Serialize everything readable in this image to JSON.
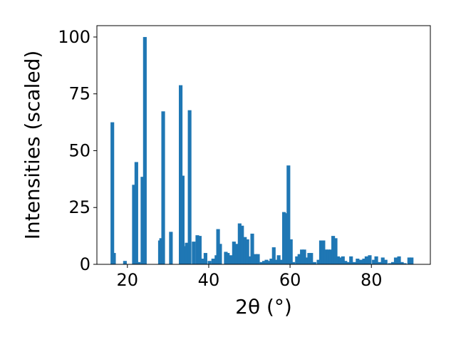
{
  "chart_data": {
    "type": "bar",
    "xlabel": "2θ (°)",
    "ylabel": "Intensities (scaled)",
    "xlim": [
      12.5,
      94.5
    ],
    "ylim": [
      0,
      105
    ],
    "bar_width": 0.9,
    "color": "#1f77b4",
    "grid": false,
    "legend": "none",
    "x_ticks": [
      20,
      40,
      60,
      80
    ],
    "x_tick_labels": [
      "20",
      "40",
      "60",
      "80"
    ],
    "y_ticks": [
      0,
      25,
      50,
      75,
      100
    ],
    "y_tick_labels": [
      "0",
      "25",
      "50",
      "75",
      "100"
    ],
    "points": [
      {
        "x": 16.3,
        "y": 62.5
      },
      {
        "x": 16.7,
        "y": 5.0
      },
      {
        "x": 19.4,
        "y": 1.5
      },
      {
        "x": 21.6,
        "y": 35.0
      },
      {
        "x": 22.2,
        "y": 45.0
      },
      {
        "x": 22.8,
        "y": 1.0
      },
      {
        "x": 23.7,
        "y": 38.5
      },
      {
        "x": 24.3,
        "y": 100.0
      },
      {
        "x": 28.0,
        "y": 10.5
      },
      {
        "x": 28.3,
        "y": 11.5
      },
      {
        "x": 28.8,
        "y": 67.3
      },
      {
        "x": 30.7,
        "y": 14.3
      },
      {
        "x": 33.1,
        "y": 78.8
      },
      {
        "x": 33.6,
        "y": 39.0
      },
      {
        "x": 34.1,
        "y": 8.0
      },
      {
        "x": 34.6,
        "y": 9.5
      },
      {
        "x": 35.3,
        "y": 67.8
      },
      {
        "x": 36.3,
        "y": 10.0
      },
      {
        "x": 37.2,
        "y": 12.8
      },
      {
        "x": 37.8,
        "y": 12.5
      },
      {
        "x": 38.4,
        "y": 2.5
      },
      {
        "x": 39.2,
        "y": 5.0
      },
      {
        "x": 40.2,
        "y": 1.5
      },
      {
        "x": 41.1,
        "y": 2.5
      },
      {
        "x": 41.9,
        "y": 4.0
      },
      {
        "x": 42.3,
        "y": 15.5
      },
      {
        "x": 42.8,
        "y": 9.0
      },
      {
        "x": 44.2,
        "y": 5.5
      },
      {
        "x": 44.7,
        "y": 5.0
      },
      {
        "x": 45.5,
        "y": 4.0
      },
      {
        "x": 46.2,
        "y": 10.0
      },
      {
        "x": 46.8,
        "y": 9.0
      },
      {
        "x": 47.6,
        "y": 18.0
      },
      {
        "x": 48.2,
        "y": 17.0
      },
      {
        "x": 48.9,
        "y": 12.0
      },
      {
        "x": 49.5,
        "y": 11.0
      },
      {
        "x": 50.2,
        "y": 3.5
      },
      {
        "x": 50.7,
        "y": 13.5
      },
      {
        "x": 51.5,
        "y": 4.5
      },
      {
        "x": 52.1,
        "y": 4.5
      },
      {
        "x": 53.0,
        "y": 1.0
      },
      {
        "x": 53.6,
        "y": 1.5
      },
      {
        "x": 54.2,
        "y": 2.0
      },
      {
        "x": 54.8,
        "y": 1.5
      },
      {
        "x": 55.4,
        "y": 2.5
      },
      {
        "x": 56.0,
        "y": 7.5
      },
      {
        "x": 56.6,
        "y": 2.0
      },
      {
        "x": 57.2,
        "y": 4.0
      },
      {
        "x": 57.9,
        "y": 2.0
      },
      {
        "x": 58.5,
        "y": 23.0
      },
      {
        "x": 59.0,
        "y": 22.5
      },
      {
        "x": 59.6,
        "y": 43.5
      },
      {
        "x": 60.2,
        "y": 11.0
      },
      {
        "x": 60.8,
        "y": 1.0
      },
      {
        "x": 61.7,
        "y": 3.5
      },
      {
        "x": 62.3,
        "y": 4.5
      },
      {
        "x": 62.9,
        "y": 6.5
      },
      {
        "x": 63.5,
        "y": 6.5
      },
      {
        "x": 64.1,
        "y": 3.0
      },
      {
        "x": 64.7,
        "y": 5.0
      },
      {
        "x": 65.2,
        "y": 5.0
      },
      {
        "x": 66.0,
        "y": 1.0
      },
      {
        "x": 67.0,
        "y": 2.0
      },
      {
        "x": 67.6,
        "y": 10.5
      },
      {
        "x": 68.2,
        "y": 10.5
      },
      {
        "x": 68.8,
        "y": 6.5
      },
      {
        "x": 69.4,
        "y": 6.5
      },
      {
        "x": 70.0,
        "y": 6.5
      },
      {
        "x": 70.6,
        "y": 12.5
      },
      {
        "x": 71.2,
        "y": 11.5
      },
      {
        "x": 71.8,
        "y": 3.5
      },
      {
        "x": 72.4,
        "y": 3.0
      },
      {
        "x": 73.0,
        "y": 3.5
      },
      {
        "x": 73.6,
        "y": 1.5
      },
      {
        "x": 74.2,
        "y": 1.0
      },
      {
        "x": 75.0,
        "y": 3.5
      },
      {
        "x": 75.8,
        "y": 1.0
      },
      {
        "x": 76.6,
        "y": 2.5
      },
      {
        "x": 77.4,
        "y": 2.0
      },
      {
        "x": 78.2,
        "y": 2.5
      },
      {
        "x": 78.8,
        "y": 3.5
      },
      {
        "x": 79.6,
        "y": 4.0
      },
      {
        "x": 80.6,
        "y": 2.0
      },
      {
        "x": 81.2,
        "y": 3.5
      },
      {
        "x": 82.0,
        "y": 1.0
      },
      {
        "x": 82.8,
        "y": 3.0
      },
      {
        "x": 83.5,
        "y": 2.0
      },
      {
        "x": 84.5,
        "y": 0.5
      },
      {
        "x": 85.3,
        "y": 1.0
      },
      {
        "x": 86.0,
        "y": 3.0
      },
      {
        "x": 86.8,
        "y": 3.5
      },
      {
        "x": 87.5,
        "y": 1.0
      },
      {
        "x": 88.2,
        "y": 0.5
      },
      {
        "x": 89.3,
        "y": 3.0
      },
      {
        "x": 89.9,
        "y": 3.0
      }
    ]
  }
}
